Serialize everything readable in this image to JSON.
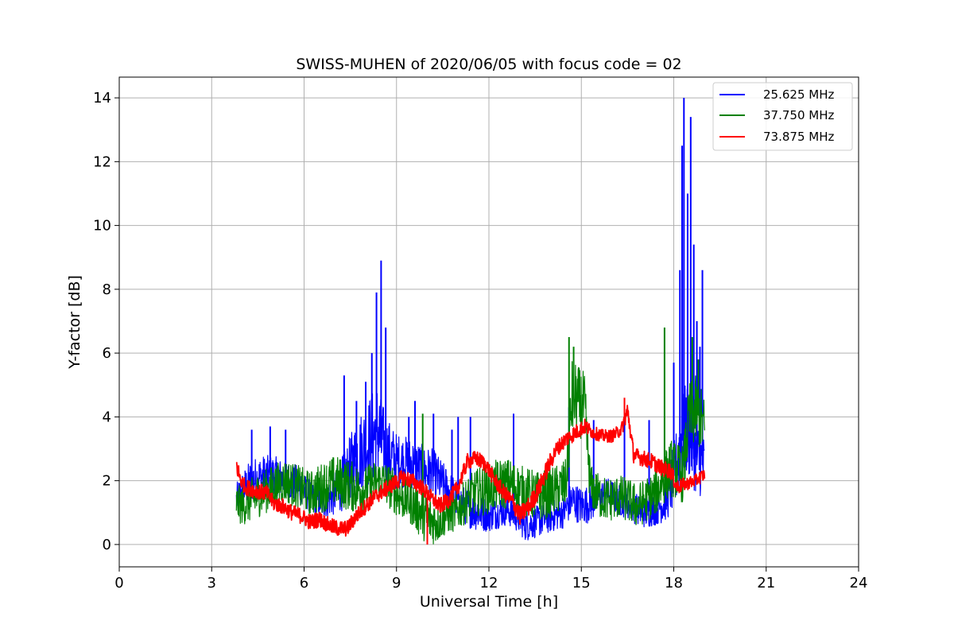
{
  "chart_data": {
    "type": "line",
    "title": "SWISS-MUHEN of 2020/06/05 with focus code = 02",
    "xlabel": "Universal Time [h]",
    "ylabel": "Y-factor [dB]",
    "xlim": [
      0,
      24
    ],
    "ylim": [
      -0.7,
      14.65
    ],
    "xticks": [
      0,
      3,
      6,
      9,
      12,
      15,
      18,
      21,
      24
    ],
    "yticks": [
      0,
      2,
      4,
      6,
      8,
      10,
      12,
      14
    ],
    "grid": true,
    "legend_position": "top-right",
    "series": [
      {
        "name": "25.625 MHz",
        "color": "#0000ff",
        "x": [
          3.8,
          4.0,
          4.3,
          4.6,
          5.0,
          5.4,
          5.8,
          6.2,
          6.6,
          7.0,
          7.3,
          7.6,
          7.9,
          8.2,
          8.4,
          8.5,
          8.7,
          9.0,
          9.3,
          9.6,
          9.9,
          10.2,
          10.5,
          10.8,
          11.1,
          11.4,
          11.7,
          12.0,
          12.3,
          12.6,
          12.9,
          13.2,
          13.5,
          13.8,
          14.1,
          14.4,
          14.7,
          15.0,
          15.3,
          15.6,
          15.9,
          16.2,
          16.5,
          16.8,
          17.1,
          17.4,
          17.7,
          17.9,
          18.1,
          18.25,
          18.4,
          18.55,
          18.7,
          18.85,
          19.0
        ],
        "y": [
          1.4,
          1.7,
          2.0,
          2.1,
          2.2,
          2.0,
          1.9,
          1.5,
          1.3,
          1.6,
          2.0,
          2.6,
          3.0,
          3.3,
          3.6,
          3.2,
          2.9,
          2.6,
          2.6,
          2.5,
          2.3,
          2.2,
          1.9,
          1.6,
          1.3,
          1.1,
          1.0,
          0.9,
          1.0,
          1.1,
          0.9,
          0.6,
          0.7,
          0.8,
          0.9,
          1.0,
          1.4,
          1.2,
          1.3,
          1.5,
          1.6,
          1.4,
          1.3,
          1.1,
          1.0,
          1.1,
          1.3,
          1.8,
          2.5,
          3.2,
          3.6,
          3.4,
          2.8,
          2.6,
          2.4
        ],
        "spread": [
          0.5,
          0.6,
          0.7,
          0.7,
          0.6,
          0.6,
          0.6,
          0.5,
          0.5,
          0.7,
          0.9,
          1.1,
          1.3,
          1.5,
          1.6,
          1.4,
          1.1,
          0.9,
          0.8,
          0.8,
          0.8,
          0.8,
          0.7,
          0.6,
          0.6,
          0.6,
          0.6,
          0.5,
          0.5,
          0.5,
          0.5,
          0.5,
          0.5,
          0.5,
          0.5,
          0.5,
          0.6,
          0.6,
          0.6,
          0.5,
          0.5,
          0.5,
          0.5,
          0.5,
          0.5,
          0.5,
          0.6,
          0.9,
          1.2,
          1.4,
          1.5,
          1.4,
          1.2,
          1.1,
          1.0
        ],
        "peaks": [
          {
            "x": 4.3,
            "y": 3.6
          },
          {
            "x": 4.9,
            "y": 3.7
          },
          {
            "x": 5.4,
            "y": 3.6
          },
          {
            "x": 7.3,
            "y": 5.3
          },
          {
            "x": 7.7,
            "y": 4.5
          },
          {
            "x": 8.0,
            "y": 5.1
          },
          {
            "x": 8.2,
            "y": 6.0
          },
          {
            "x": 8.35,
            "y": 7.9
          },
          {
            "x": 8.5,
            "y": 8.9
          },
          {
            "x": 8.65,
            "y": 6.8
          },
          {
            "x": 9.4,
            "y": 4.0
          },
          {
            "x": 9.6,
            "y": 4.5
          },
          {
            "x": 10.2,
            "y": 4.1
          },
          {
            "x": 10.8,
            "y": 3.6
          },
          {
            "x": 11.0,
            "y": 4.0
          },
          {
            "x": 11.4,
            "y": 4.0
          },
          {
            "x": 12.8,
            "y": 4.1
          },
          {
            "x": 14.6,
            "y": 4.3
          },
          {
            "x": 15.4,
            "y": 3.9
          },
          {
            "x": 16.4,
            "y": 4.1
          },
          {
            "x": 17.2,
            "y": 3.9
          },
          {
            "x": 18.0,
            "y": 5.7
          },
          {
            "x": 18.2,
            "y": 8.6
          },
          {
            "x": 18.27,
            "y": 12.5
          },
          {
            "x": 18.33,
            "y": 14.0
          },
          {
            "x": 18.45,
            "y": 11.0
          },
          {
            "x": 18.55,
            "y": 13.4
          },
          {
            "x": 18.65,
            "y": 9.4
          },
          {
            "x": 18.75,
            "y": 7.0
          },
          {
            "x": 18.85,
            "y": 6.2
          },
          {
            "x": 18.93,
            "y": 8.6
          }
        ]
      },
      {
        "name": "37.750 MHz",
        "color": "#008000",
        "x": [
          3.8,
          4.0,
          4.3,
          4.6,
          5.0,
          5.4,
          5.8,
          6.2,
          6.6,
          7.0,
          7.3,
          7.6,
          7.9,
          8.2,
          8.5,
          8.8,
          9.1,
          9.4,
          9.7,
          10.0,
          10.3,
          10.6,
          10.9,
          11.2,
          11.5,
          11.8,
          12.1,
          12.4,
          12.7,
          13.0,
          13.3,
          13.6,
          13.9,
          14.2,
          14.5,
          14.7,
          14.9,
          15.1,
          15.3,
          15.6,
          15.9,
          16.2,
          16.5,
          16.8,
          17.1,
          17.4,
          17.7,
          17.9,
          18.1,
          18.3,
          18.5,
          18.7,
          18.9,
          19.0
        ],
        "y": [
          1.3,
          1.2,
          1.4,
          1.6,
          1.8,
          2.0,
          1.8,
          1.6,
          1.8,
          2.0,
          1.9,
          1.8,
          1.7,
          1.9,
          2.0,
          1.8,
          1.5,
          1.4,
          1.1,
          0.8,
          0.7,
          0.9,
          1.0,
          1.3,
          1.6,
          1.7,
          1.8,
          1.9,
          1.9,
          1.7,
          1.6,
          1.5,
          1.6,
          1.7,
          1.9,
          4.6,
          4.5,
          4.3,
          1.8,
          1.5,
          1.4,
          1.5,
          1.4,
          1.2,
          1.4,
          1.6,
          2.1,
          2.4,
          2.3,
          2.2,
          4.0,
          4.2,
          3.9,
          3.6
        ],
        "spread": [
          0.6,
          0.6,
          0.7,
          0.7,
          0.7,
          0.7,
          0.7,
          0.7,
          0.8,
          0.8,
          0.8,
          0.8,
          0.7,
          0.7,
          0.7,
          0.7,
          0.7,
          0.7,
          0.8,
          0.8,
          0.7,
          0.6,
          0.6,
          0.7,
          0.7,
          0.8,
          0.8,
          0.8,
          0.8,
          0.8,
          0.8,
          0.8,
          0.8,
          0.8,
          0.8,
          1.2,
          1.1,
          1.1,
          0.7,
          0.7,
          0.7,
          0.7,
          0.7,
          0.7,
          0.7,
          0.7,
          0.8,
          0.9,
          0.9,
          0.9,
          1.1,
          1.1,
          1.0,
          1.0
        ],
        "peaks": [
          {
            "x": 9.85,
            "y": 4.1
          },
          {
            "x": 14.6,
            "y": 6.5
          },
          {
            "x": 14.75,
            "y": 6.2
          },
          {
            "x": 17.7,
            "y": 6.8
          },
          {
            "x": 18.6,
            "y": 6.5
          },
          {
            "x": 18.8,
            "y": 5.8
          }
        ]
      },
      {
        "name": "73.875 MHz",
        "color": "#ff0000",
        "x": [
          3.8,
          3.95,
          4.1,
          4.4,
          4.8,
          5.0,
          5.3,
          5.6,
          5.9,
          6.2,
          6.5,
          6.8,
          7.1,
          7.4,
          7.7,
          8.0,
          8.3,
          8.6,
          8.9,
          9.2,
          9.5,
          9.8,
          10.1,
          10.4,
          10.7,
          11.0,
          11.3,
          11.6,
          11.9,
          12.2,
          12.5,
          12.8,
          13.0,
          13.3,
          13.6,
          13.9,
          14.2,
          14.5,
          14.8,
          15.1,
          15.4,
          15.7,
          16.0,
          16.3,
          16.5,
          16.7,
          17.0,
          17.3,
          17.6,
          17.9,
          18.1,
          18.4,
          18.7,
          19.0
        ],
        "y": [
          2.5,
          2.0,
          1.8,
          1.7,
          1.6,
          1.3,
          1.2,
          1.0,
          0.9,
          0.7,
          0.8,
          0.6,
          0.5,
          0.5,
          0.9,
          1.2,
          1.5,
          1.7,
          1.9,
          2.1,
          2.0,
          1.8,
          1.5,
          1.2,
          1.4,
          1.8,
          2.6,
          2.7,
          2.5,
          2.0,
          1.6,
          1.3,
          0.9,
          1.2,
          1.7,
          2.4,
          3.0,
          3.3,
          3.5,
          3.7,
          3.5,
          3.4,
          3.4,
          3.6,
          4.2,
          2.8,
          2.7,
          2.6,
          2.4,
          2.3,
          1.8,
          1.9,
          2.0,
          2.2
        ],
        "spread": [
          0.3,
          0.25,
          0.25,
          0.25,
          0.25,
          0.25,
          0.25,
          0.25,
          0.25,
          0.25,
          0.25,
          0.25,
          0.25,
          0.25,
          0.25,
          0.25,
          0.25,
          0.25,
          0.25,
          0.25,
          0.25,
          0.25,
          0.25,
          0.25,
          0.25,
          0.25,
          0.25,
          0.25,
          0.25,
          0.25,
          0.25,
          0.3,
          0.3,
          0.3,
          0.3,
          0.3,
          0.25,
          0.25,
          0.25,
          0.25,
          0.2,
          0.2,
          0.2,
          0.2,
          0.3,
          0.25,
          0.25,
          0.25,
          0.25,
          0.25,
          0.25,
          0.2,
          0.2,
          0.2
        ],
        "peaks": [
          {
            "x": 16.4,
            "y": 4.6
          },
          {
            "x": 10.0,
            "y": 0.0
          }
        ]
      }
    ]
  }
}
